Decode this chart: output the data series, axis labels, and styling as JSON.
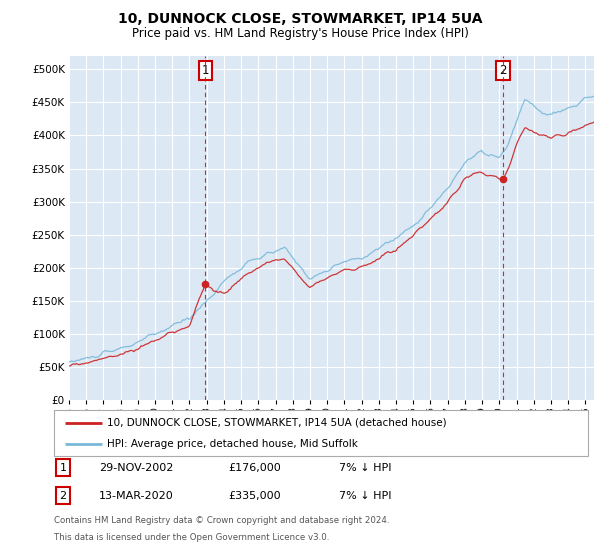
{
  "title": "10, DUNNOCK CLOSE, STOWMARKET, IP14 5UA",
  "subtitle": "Price paid vs. HM Land Registry's House Price Index (HPI)",
  "background_color": "#dce9f5",
  "plot_bg_color": "#dce9f5",
  "grid_color": "#ffffff",
  "sale1_date": "29-NOV-2002",
  "sale1_price": 176000,
  "sale1_year": 2002.917,
  "sale2_date": "13-MAR-2020",
  "sale2_price": 335000,
  "sale2_year": 2020.208,
  "legend_line1": "10, DUNNOCK CLOSE, STOWMARKET, IP14 5UA (detached house)",
  "legend_line2": "HPI: Average price, detached house, Mid Suffolk",
  "footer1": "Contains HM Land Registry data © Crown copyright and database right 2024.",
  "footer2": "This data is licensed under the Open Government Licence v3.0.",
  "ylim": [
    0,
    520000
  ],
  "xlim": [
    1995,
    2025.5
  ],
  "yticks": [
    0,
    50000,
    100000,
    150000,
    200000,
    250000,
    300000,
    350000,
    400000,
    450000,
    500000
  ],
  "hpi_color": "#7ab8d9",
  "price_color": "#cc2222",
  "marker_box_color": "#cc0000",
  "sale1_note": "7% ↓ HPI",
  "sale2_note": "7% ↓ HPI"
}
